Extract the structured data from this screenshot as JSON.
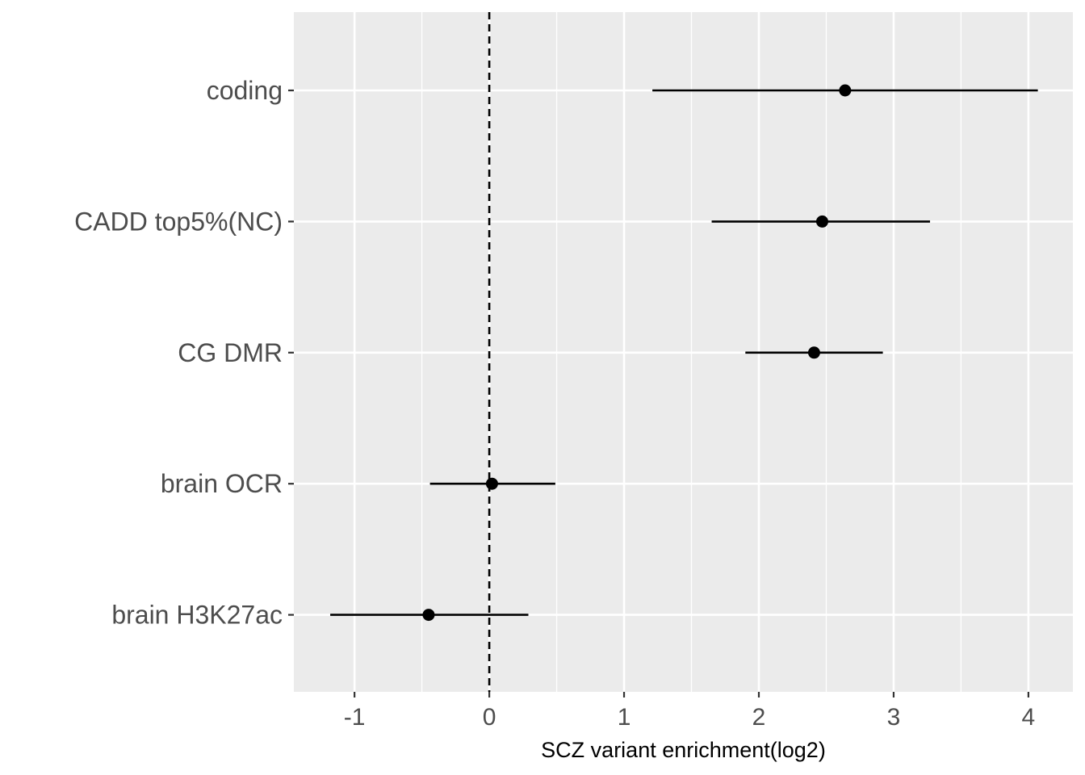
{
  "chart_data": {
    "type": "scatter",
    "subtype": "forest-plot",
    "title": "",
    "xlabel": "SCZ variant enrichment(log2)",
    "ylabel": "",
    "xlim": [
      -1.45,
      4.33
    ],
    "x_ticks": [
      -1,
      0,
      1,
      2,
      3,
      4
    ],
    "x_tick_labels": [
      "-1",
      "0",
      "1",
      "2",
      "3",
      "4"
    ],
    "reference_line": {
      "x": 0,
      "style": "dashed"
    },
    "grid": true,
    "categories": [
      "coding",
      "CADD top5%(NC)",
      "CG DMR",
      "brain OCR",
      "brain H3K27ac"
    ],
    "series": [
      {
        "name": "enrichment",
        "estimate": [
          2.64,
          2.47,
          2.41,
          0.02,
          -0.45
        ],
        "lower": [
          1.21,
          1.65,
          1.9,
          -0.44,
          -1.18
        ],
        "upper": [
          4.07,
          3.27,
          2.92,
          0.49,
          0.29
        ]
      }
    ],
    "colors": {
      "panel": "#ebebeb",
      "grid": "#ffffff",
      "marks": "#000000",
      "tick_text": "#4d4d4d"
    }
  }
}
